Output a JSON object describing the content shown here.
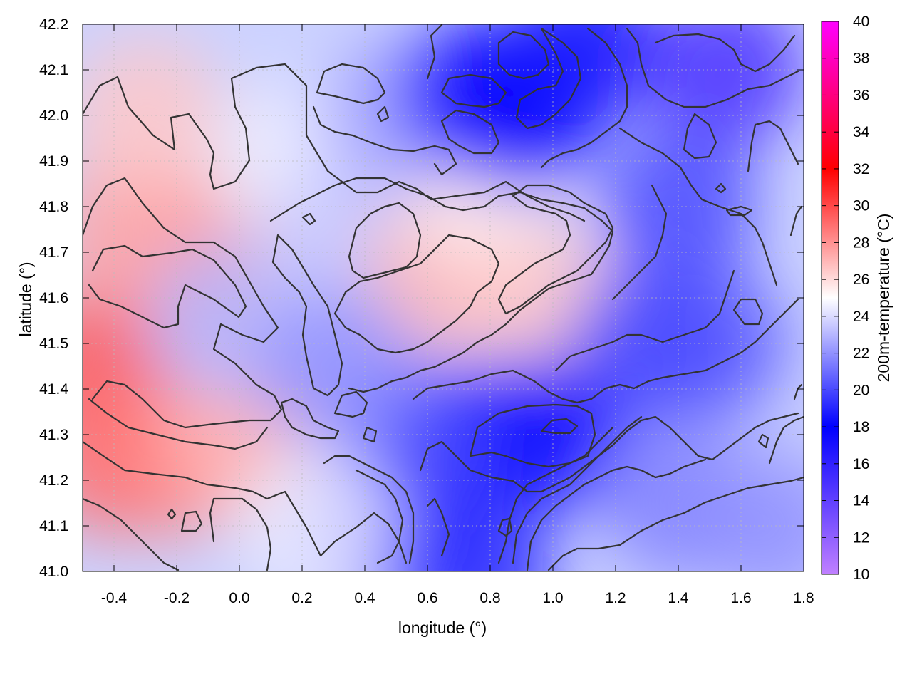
{
  "chart_data": {
    "type": "heatmap",
    "title": "",
    "xlabel": "longitude (°)",
    "ylabel": "latitude (°)",
    "colorbar_label": "200m-temperature (°C)",
    "xlim": [
      -0.5,
      1.8
    ],
    "ylim": [
      41.0,
      42.2
    ],
    "xticks": [
      "-0.4",
      "-0.2",
      "0.0",
      "0.2",
      "0.4",
      "0.6",
      "0.8",
      "1.0",
      "1.2",
      "1.4",
      "1.6",
      "1.8"
    ],
    "yticks": [
      "41.0",
      "41.1",
      "41.2",
      "41.3",
      "41.4",
      "41.5",
      "41.6",
      "41.7",
      "41.8",
      "41.9",
      "42.0",
      "42.1",
      "42.2"
    ],
    "colorbar_ticks": [
      "10",
      "12",
      "14",
      "16",
      "18",
      "20",
      "22",
      "24",
      "26",
      "28",
      "30",
      "32",
      "34",
      "36",
      "38",
      "40"
    ],
    "colorbar_range": [
      10,
      40
    ],
    "colorbar_stops": [
      {
        "value": 10,
        "color": "#c080ff"
      },
      {
        "value": 18,
        "color": "#0000ff"
      },
      {
        "value": 25,
        "color": "#ffffff"
      },
      {
        "value": 32,
        "color": "#ff0000"
      },
      {
        "value": 40,
        "color": "#ff00ff"
      }
    ],
    "grid": true,
    "contours": "terrain elevation isolines (black)",
    "field_samples": [
      {
        "lon": -0.45,
        "lat": 41.45,
        "temp": 29.5
      },
      {
        "lon": -0.4,
        "lat": 41.25,
        "temp": 29
      },
      {
        "lon": -0.2,
        "lat": 41.25,
        "temp": 28.5
      },
      {
        "lon": 0.0,
        "lat": 41.3,
        "temp": 27
      },
      {
        "lon": -0.1,
        "lat": 41.7,
        "temp": 28
      },
      {
        "lon": -0.35,
        "lat": 41.75,
        "temp": 27.5
      },
      {
        "lon": -0.3,
        "lat": 42.0,
        "temp": 26.5
      },
      {
        "lon": -0.05,
        "lat": 41.55,
        "temp": 23
      },
      {
        "lon": 0.15,
        "lat": 41.9,
        "temp": 24.5
      },
      {
        "lon": 0.3,
        "lat": 41.7,
        "temp": 23.5
      },
      {
        "lon": 0.65,
        "lat": 41.65,
        "temp": 27
      },
      {
        "lon": 0.95,
        "lat": 41.6,
        "temp": 26.5
      },
      {
        "lon": 0.75,
        "lat": 41.85,
        "temp": 25.5
      },
      {
        "lon": 0.5,
        "lat": 42.0,
        "temp": 22.5
      },
      {
        "lon": 0.75,
        "lat": 42.05,
        "temp": 17
      },
      {
        "lon": 0.9,
        "lat": 42.0,
        "temp": 18
      },
      {
        "lon": 1.1,
        "lat": 42.15,
        "temp": 17.5
      },
      {
        "lon": 1.55,
        "lat": 42.1,
        "temp": 15
      },
      {
        "lon": 1.4,
        "lat": 41.8,
        "temp": 20
      },
      {
        "lon": 1.5,
        "lat": 41.5,
        "temp": 20.5
      },
      {
        "lon": 1.3,
        "lat": 41.5,
        "temp": 20
      },
      {
        "lon": 1.0,
        "lat": 41.3,
        "temp": 16.5
      },
      {
        "lon": 0.85,
        "lat": 41.3,
        "temp": 17.5
      },
      {
        "lon": 0.45,
        "lat": 41.1,
        "temp": 17
      },
      {
        "lon": 0.55,
        "lat": 41.3,
        "temp": 20
      },
      {
        "lon": 0.3,
        "lat": 41.45,
        "temp": 22
      },
      {
        "lon": 1.4,
        "lat": 41.15,
        "temp": 21.5
      },
      {
        "lon": 1.7,
        "lat": 41.1,
        "temp": 22
      },
      {
        "lon": 0.25,
        "lat": 41.1,
        "temp": 24.5
      },
      {
        "lon": 0.75,
        "lat": 41.0,
        "temp": 19
      }
    ]
  }
}
